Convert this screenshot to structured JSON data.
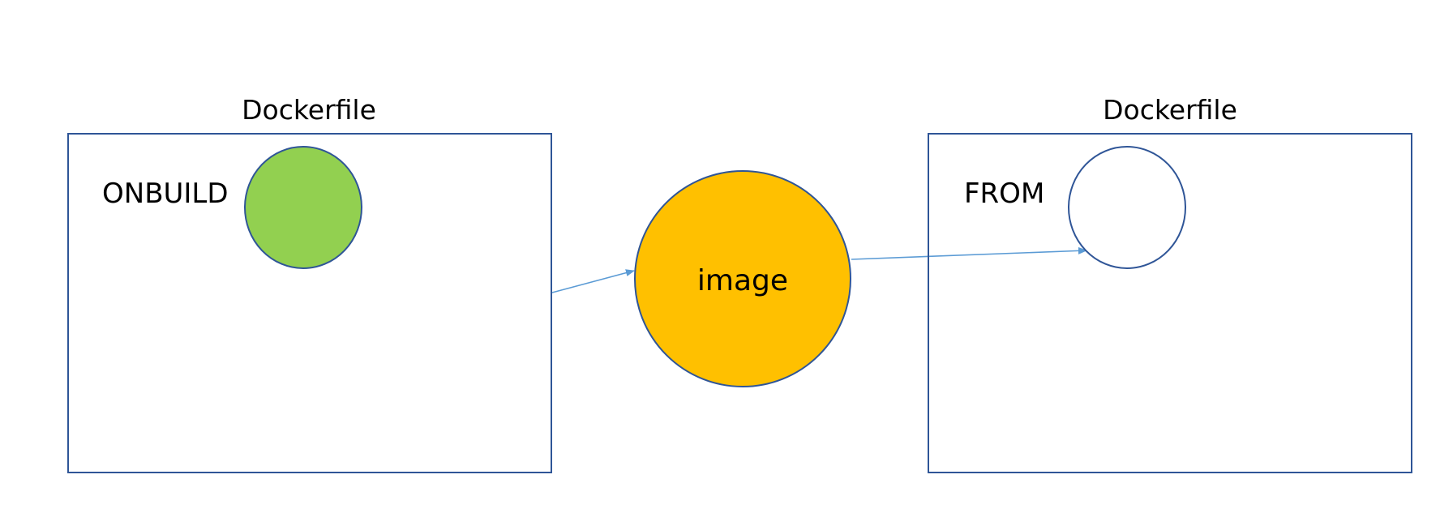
{
  "diagram": {
    "left_block": {
      "title": "Dockerfile",
      "instruction": "ONBUILD",
      "marker_fill": "#92d050"
    },
    "center_node": {
      "label": "image",
      "fill": "#ffc000"
    },
    "right_block": {
      "title": "Dockerfile",
      "instruction": "FROM",
      "marker_fill": "#ffffff"
    },
    "colors": {
      "outline": "#2f5597",
      "arrow": "#5b9bd5",
      "background": "#ffffff"
    }
  }
}
